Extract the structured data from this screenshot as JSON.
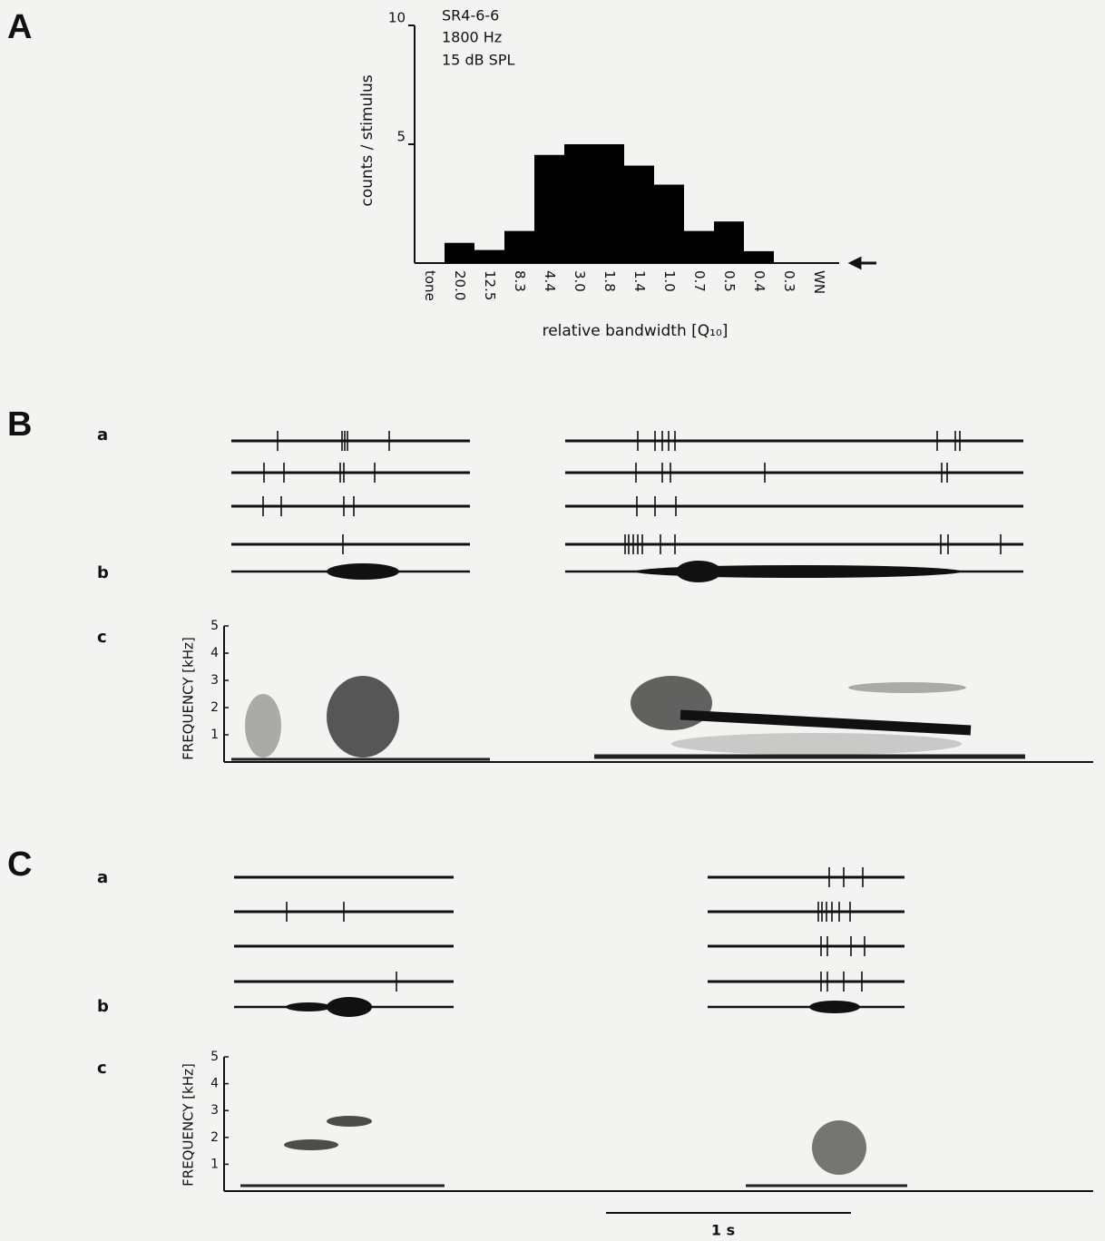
{
  "chart_data": {
    "type": "bar",
    "panel_label": "A",
    "annotations": [
      "SR4-6-6",
      "1800 Hz",
      "15 dB SPL"
    ],
    "y_label": "counts / stimulus",
    "x_label": "relative bandwidth [Q₁₀]",
    "categories": [
      "tone",
      "20.0",
      "12.5",
      "8.3",
      "4.4",
      "3.0",
      "1.8",
      "1.4",
      "1.0",
      "0.7",
      "0.5",
      "0.4",
      "0.3",
      "WN"
    ],
    "values": [
      0,
      0.85,
      0.55,
      1.35,
      4.55,
      5.0,
      5.0,
      4.1,
      3.3,
      1.35,
      1.75,
      0.5,
      0,
      0
    ],
    "color": "#000000",
    "ylim": [
      0,
      10
    ],
    "yticks": [
      5,
      10
    ]
  },
  "panel_b": {
    "label": "B",
    "rows": [
      "a",
      "b",
      "c"
    ],
    "freq_label": "FREQUENCY [kHz]",
    "freq_ticks": [
      "1",
      "2",
      "3",
      "4",
      "5"
    ]
  },
  "panel_c": {
    "label": "C",
    "rows": [
      "a",
      "b",
      "c"
    ],
    "freq_label": "FREQUENCY [kHz]",
    "freq_ticks": [
      "1",
      "2",
      "3",
      "4",
      "5"
    ]
  },
  "scale_bar": "1 s"
}
